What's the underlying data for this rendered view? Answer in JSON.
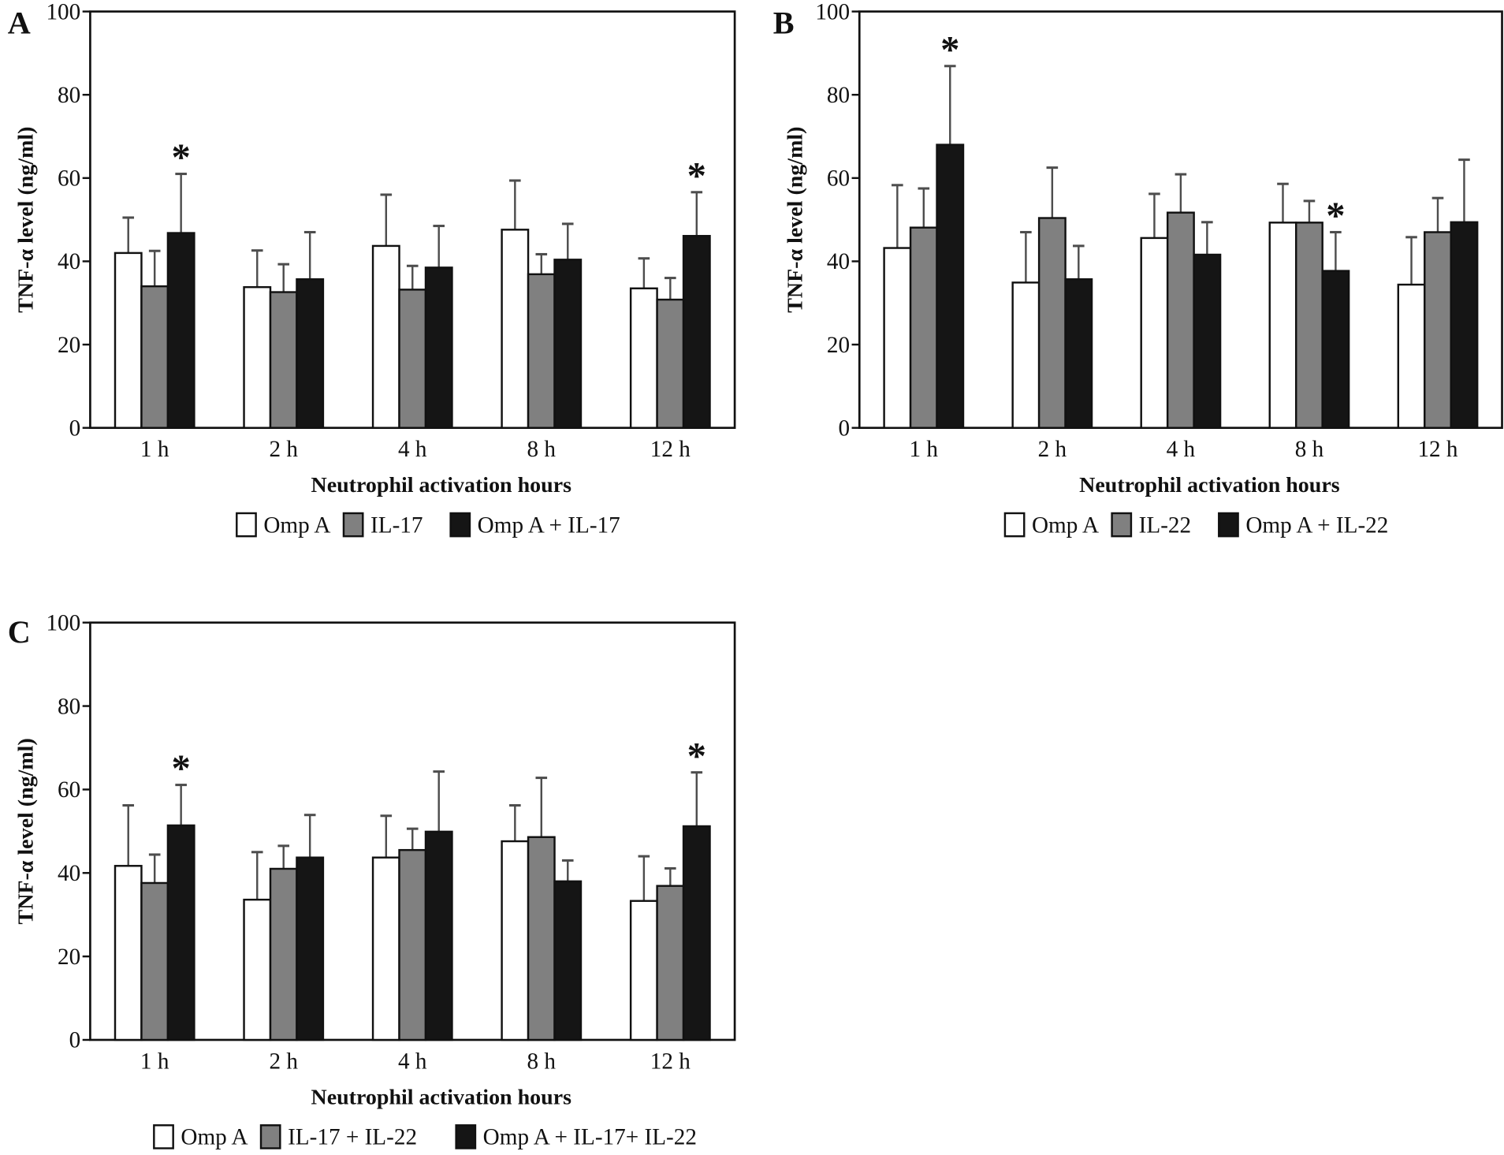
{
  "chart_data": [
    {
      "panel": "A",
      "type": "bar",
      "title": "",
      "xlabel": "Neutrophil activation hours",
      "ylabel": "TNF-α level (ng/ml)",
      "ylim": [
        0,
        100
      ],
      "yticks": [
        "0",
        "20",
        "40",
        "60",
        "80",
        "100"
      ],
      "categories": [
        "1 h",
        "2 h",
        "4 h",
        "8 h",
        "12 h"
      ],
      "series": [
        {
          "name": "Omp A",
          "fill": "#ffffff",
          "values": [
            42.0,
            33.8,
            43.7,
            47.6,
            33.5
          ],
          "error_upper": [
            50.5,
            42.6,
            56.0,
            59.4,
            40.7
          ]
        },
        {
          "name": "IL-17",
          "fill": "#808080",
          "values": [
            34.0,
            32.6,
            33.2,
            36.9,
            30.8
          ],
          "error_upper": [
            42.5,
            39.3,
            38.9,
            41.7,
            36.0
          ]
        },
        {
          "name": "Omp A + IL-17",
          "fill": "#151515",
          "values": [
            46.8,
            35.7,
            38.5,
            40.4,
            46.1
          ],
          "error_upper": [
            61.0,
            47.0,
            48.5,
            49.0,
            56.6
          ]
        }
      ],
      "significance": [
        {
          "category": "1 h",
          "series": 2,
          "mark": "*"
        },
        {
          "category": "12 h",
          "series": 2,
          "mark": "*"
        }
      ],
      "legend_position": "bottom-center",
      "grid": false
    },
    {
      "panel": "B",
      "type": "bar",
      "title": "",
      "xlabel": "Neutrophil activation hours",
      "ylabel": "TNF-α level (ng/ml)",
      "ylim": [
        0,
        100
      ],
      "yticks": [
        "0",
        "20",
        "40",
        "60",
        "80",
        "100"
      ],
      "categories": [
        "1 h",
        "2 h",
        "4 h",
        "8 h",
        "12 h"
      ],
      "series": [
        {
          "name": "Omp A",
          "fill": "#ffffff",
          "values": [
            43.2,
            34.9,
            45.6,
            49.3,
            34.4
          ],
          "error_upper": [
            58.3,
            47.0,
            56.2,
            58.6,
            45.8
          ]
        },
        {
          "name": "IL-22",
          "fill": "#808080",
          "values": [
            48.1,
            50.4,
            51.7,
            49.3,
            47.0
          ],
          "error_upper": [
            57.5,
            62.5,
            60.9,
            54.5,
            55.2
          ]
        },
        {
          "name": "Omp A + IL-22",
          "fill": "#151515",
          "values": [
            68.0,
            35.7,
            41.6,
            37.7,
            49.4
          ],
          "error_upper": [
            86.9,
            43.7,
            49.4,
            47.0,
            64.4
          ]
        }
      ],
      "significance": [
        {
          "category": "1 h",
          "series": 2,
          "mark": "*"
        },
        {
          "category": "8 h",
          "series": 2,
          "mark": "*"
        }
      ],
      "legend_position": "bottom-center",
      "grid": false
    },
    {
      "panel": "C",
      "type": "bar",
      "title": "",
      "xlabel": "Neutrophil activation hours",
      "ylabel": "TNF-α level (ng/ml)",
      "ylim": [
        0,
        100
      ],
      "yticks": [
        "0",
        "20",
        "40",
        "60",
        "80",
        "100"
      ],
      "categories": [
        "1 h",
        "2 h",
        "4 h",
        "8 h",
        "12 h"
      ],
      "series": [
        {
          "name": "Omp A",
          "fill": "#ffffff",
          "values": [
            41.7,
            33.6,
            43.7,
            47.6,
            33.3
          ],
          "error_upper": [
            56.2,
            45.0,
            53.7,
            56.2,
            44.0
          ]
        },
        {
          "name": "IL-17 + IL-22",
          "fill": "#808080",
          "values": [
            37.6,
            41.0,
            45.5,
            48.6,
            36.9
          ],
          "error_upper": [
            44.4,
            46.5,
            50.6,
            62.8,
            41.1
          ]
        },
        {
          "name": "Omp A + IL-17+ IL-22",
          "fill": "#151515",
          "values": [
            51.4,
            43.7,
            49.9,
            38.0,
            51.2
          ],
          "error_upper": [
            61.1,
            53.9,
            64.3,
            43.0,
            64.1
          ]
        }
      ],
      "significance": [
        {
          "category": "1 h",
          "series": 2,
          "mark": "*"
        },
        {
          "category": "12 h",
          "series": 2,
          "mark": "*"
        }
      ],
      "legend_position": "bottom-center",
      "grid": false
    }
  ],
  "colors": {
    "axis": "#111111",
    "error_bar": "#4d4d4d",
    "bar_outline": "#111111"
  }
}
